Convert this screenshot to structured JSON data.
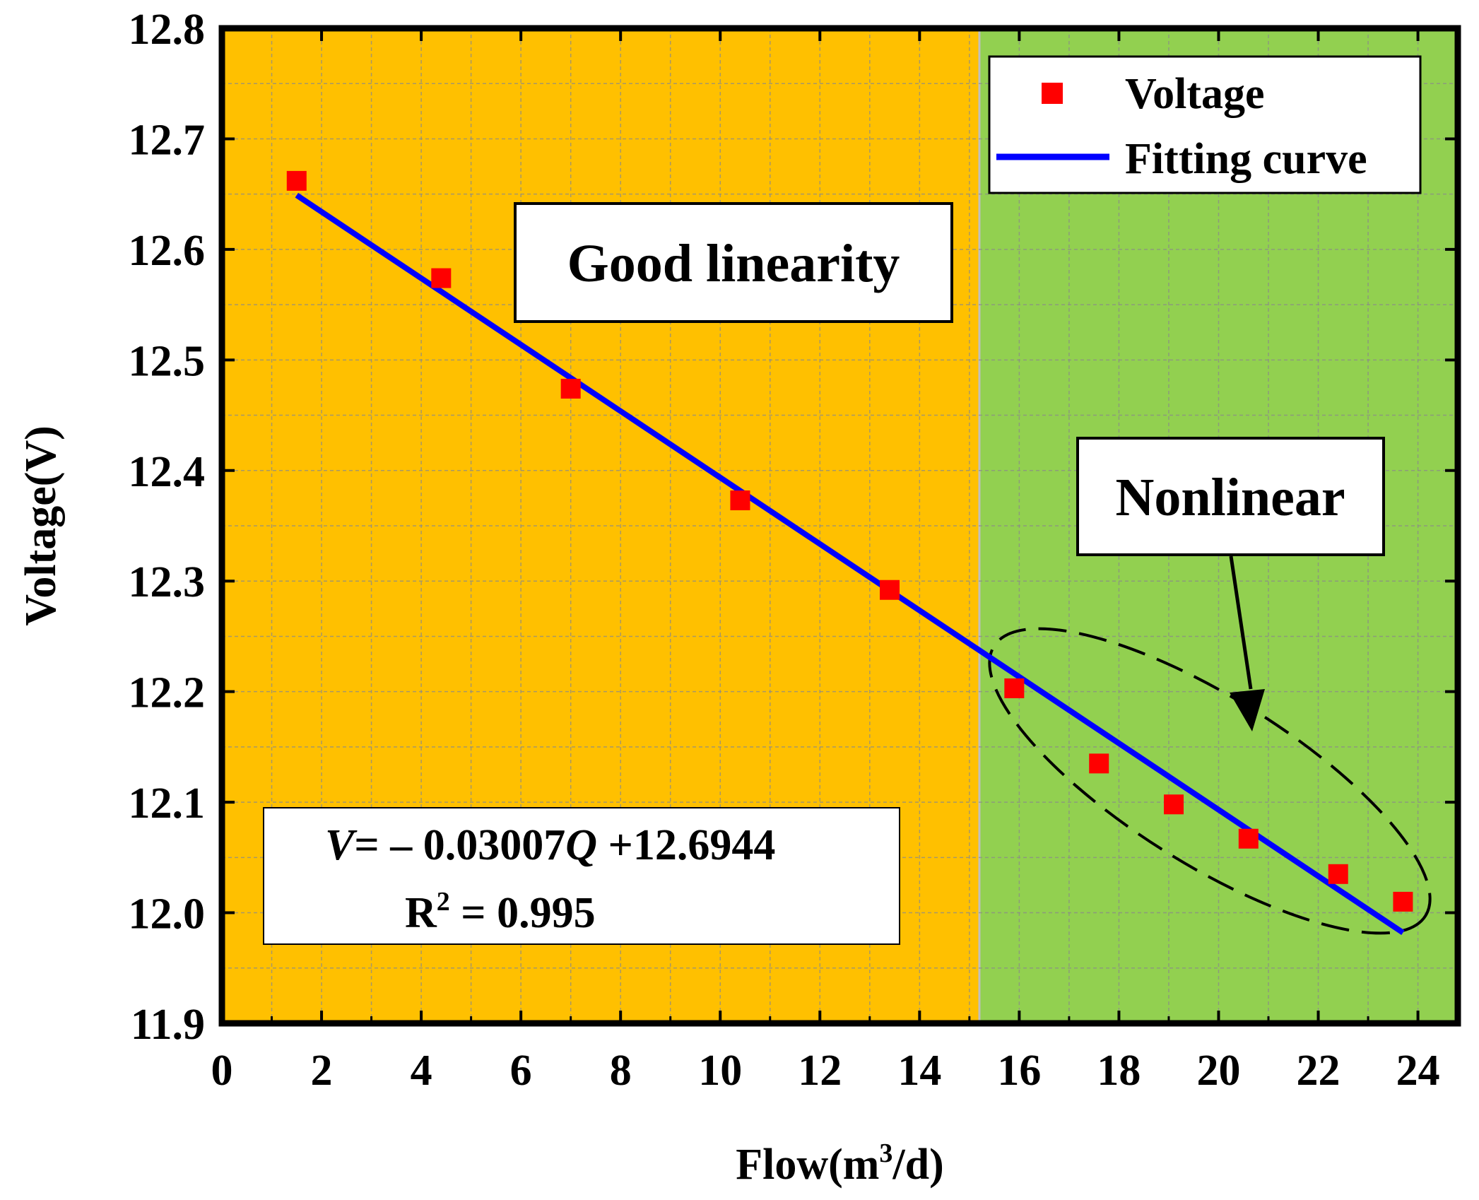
{
  "chart_data": {
    "type": "scatter",
    "xlabel_main": "Flow(m",
    "xlabel_sup": "3",
    "xlabel_tail": "/d)",
    "ylabel": "Voltage(V)",
    "xlim": [
      0,
      24.8
    ],
    "ylim": [
      11.9,
      12.8
    ],
    "x_ticks": [
      0,
      2,
      4,
      6,
      8,
      10,
      12,
      14,
      16,
      18,
      20,
      22,
      24
    ],
    "x_tick_labels": [
      "0",
      "2",
      "4",
      "6",
      "8",
      "10",
      "12",
      "14",
      "16",
      "18",
      "20",
      "22",
      "24"
    ],
    "y_ticks": [
      11.9,
      12.0,
      12.1,
      12.2,
      12.3,
      12.4,
      12.5,
      12.6,
      12.7,
      12.8
    ],
    "y_tick_labels": [
      "11.9",
      "12.0",
      "12.1",
      "12.2",
      "12.3",
      "12.4",
      "12.5",
      "12.6",
      "12.7",
      "12.8"
    ],
    "grid": true,
    "regions": [
      {
        "x_from": 0,
        "x_to": 15.2,
        "color": "#FFC000"
      },
      {
        "x_from": 15.2,
        "x_to": 24.8,
        "color": "#92D050"
      }
    ],
    "series": [
      {
        "name": "Voltage",
        "kind": "scatter",
        "color": "#FF0000",
        "marker": "square",
        "x": [
          1.5,
          4.4,
          7.0,
          10.4,
          13.4,
          15.9,
          17.6,
          19.1,
          20.6,
          22.4,
          23.7
        ],
        "y": [
          12.662,
          12.574,
          12.474,
          12.373,
          12.292,
          12.203,
          12.135,
          12.098,
          12.067,
          12.035,
          12.01
        ]
      },
      {
        "name": "Fitting curve",
        "kind": "line",
        "color": "#0000FF",
        "x": [
          1.5,
          23.7
        ],
        "y": [
          12.649,
          11.982
        ]
      }
    ],
    "legend": {
      "position": "top-right",
      "entries": [
        "Voltage",
        "Fitting curve"
      ]
    },
    "annotations": {
      "good_linearity": "Good linearity",
      "nonlinear": "Nonlinear",
      "equation_prefix": "V",
      "equation_mid": "= – 0.03007",
      "equation_var": "Q",
      "equation_tail": " +12.6944",
      "r2_label": "R",
      "r2_sup": "2",
      "r2_value": " = 0.995"
    }
  }
}
